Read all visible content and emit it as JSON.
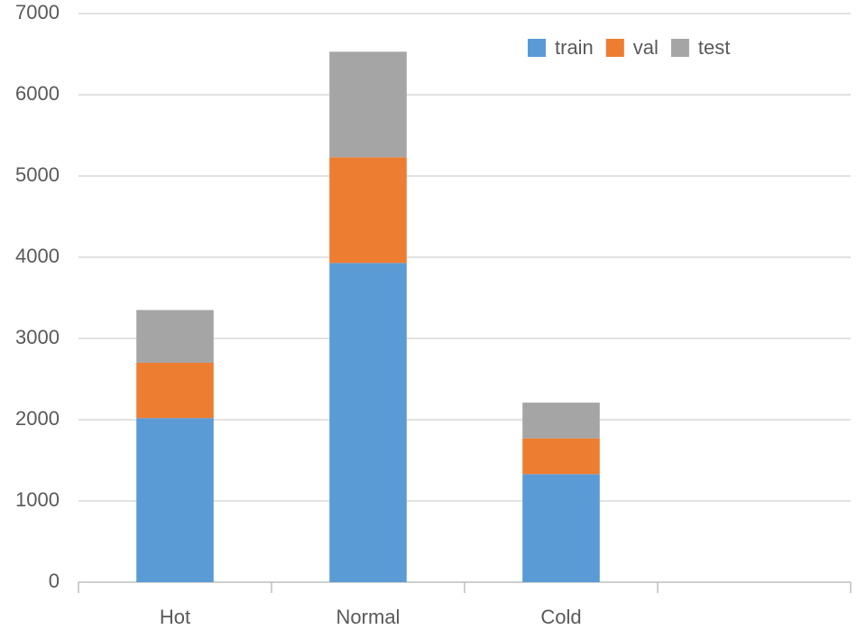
{
  "chart_data": {
    "type": "stacked_bar",
    "categories": [
      "Hot",
      "Normal",
      "Cold",
      null
    ],
    "series": [
      {
        "name": "train",
        "color": "#5b9bd5",
        "values": [
          2020,
          3930,
          1330,
          null
        ]
      },
      {
        "name": "val",
        "color": "#ed7d31",
        "values": [
          680,
          1300,
          440,
          null
        ]
      },
      {
        "name": "test",
        "color": "#a5a5a5",
        "values": [
          650,
          1300,
          440,
          null
        ]
      }
    ],
    "ylim": [
      0,
      7000
    ],
    "yticks": [
      0,
      1000,
      2000,
      3000,
      4000,
      5000,
      6000,
      7000
    ],
    "grid": true,
    "legend": "top-right"
  }
}
